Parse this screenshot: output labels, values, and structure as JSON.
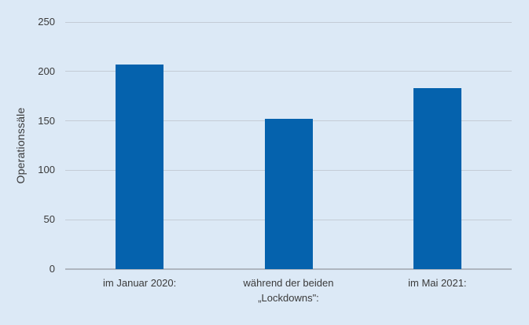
{
  "chart_data": {
    "type": "bar",
    "title": "",
    "xlabel": "",
    "ylabel": "Operationssäle",
    "categories": [
      "im Januar 2020:",
      "während der beiden „Lockdowns\":",
      "im Mai 2021:"
    ],
    "values": [
      207,
      152,
      183
    ],
    "yticks": [
      0,
      50,
      100,
      150,
      200,
      250
    ],
    "ylim": [
      0,
      250
    ],
    "grid": true,
    "legend": "none",
    "colors": {
      "bar": "#0562ad",
      "background": "#dce9f6",
      "gridline": "#c4ccd6",
      "zero_line": "#aeb6c0",
      "text": "#3a3a3a"
    }
  }
}
